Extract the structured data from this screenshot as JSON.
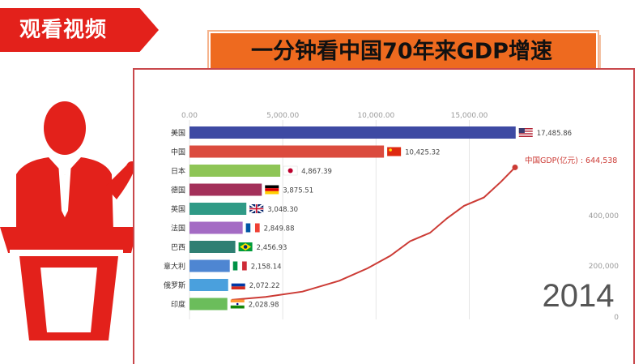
{
  "banner": {
    "label": "观看视频"
  },
  "title": "一分钟看中国70年来GDP增速",
  "colors": {
    "accent_red": "#e3211b",
    "title_orange": "#ee6a1f",
    "line_red": "#cc3b35"
  },
  "chart_data": {
    "type": "bar",
    "year_label": "2014",
    "x_ticks": [
      "0.00",
      "5,000.00",
      "10,000.00",
      "15,000.00"
    ],
    "xlim": [
      0,
      17800
    ],
    "categories": [
      "美国",
      "中国",
      "日本",
      "德国",
      "英国",
      "法国",
      "巴西",
      "意大利",
      "俄罗斯",
      "印度"
    ],
    "values": [
      17485.86,
      10425.32,
      4867.39,
      3875.51,
      3048.3,
      2849.88,
      2456.93,
      2158.14,
      2072.22,
      2028.98
    ],
    "value_labels": [
      "17,485.86",
      "10,425.32",
      "4,867.39",
      "3,875.51",
      "3,048.30",
      "2,849.88",
      "2,456.93",
      "2,158.14",
      "2,072.22",
      "2,028.98"
    ],
    "bar_colors": [
      "#3e4aa3",
      "#db4b3e",
      "#8ec556",
      "#a3305a",
      "#2f9a86",
      "#a46bc4",
      "#2f7f73",
      "#4e86d2",
      "#4aa0dd",
      "#6bbd5b"
    ],
    "flags": [
      "us-flag",
      "china-flag",
      "japan-flag",
      "germany-flag",
      "uk-flag",
      "france-flag",
      "brazil-flag",
      "italy-flag",
      "russia-flag",
      "india-flag"
    ],
    "line": {
      "name": "中国GDP(亿元)",
      "end_label": "中国GDP(亿元) : 644,538",
      "right_ticks": [
        "400,000",
        "200,000",
        "0"
      ],
      "ylim": [
        0,
        700000
      ],
      "points": [
        [
          0,
          8000
        ],
        [
          0.12,
          22000
        ],
        [
          0.25,
          48000
        ],
        [
          0.38,
          100000
        ],
        [
          0.48,
          160000
        ],
        [
          0.56,
          220000
        ],
        [
          0.63,
          290000
        ],
        [
          0.7,
          330000
        ],
        [
          0.76,
          400000
        ],
        [
          0.82,
          460000
        ],
        [
          0.89,
          500000
        ],
        [
          0.95,
          575000
        ],
        [
          1.0,
          644538
        ]
      ]
    }
  }
}
